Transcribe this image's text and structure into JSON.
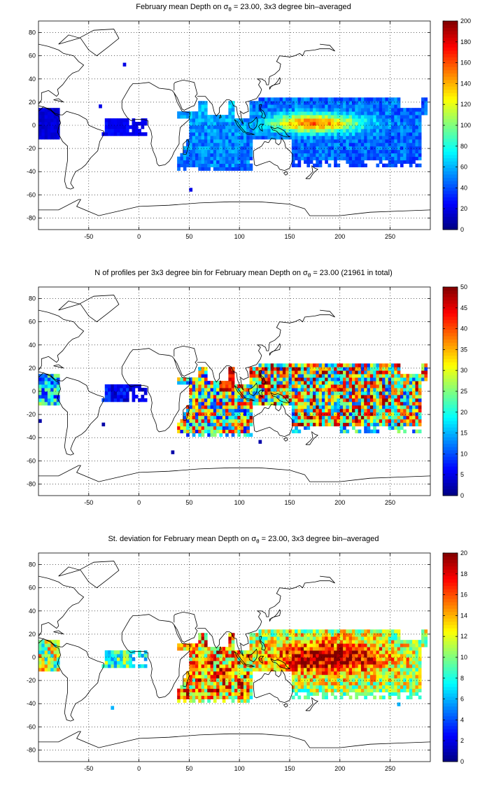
{
  "chart_data": [
    {
      "type": "heatmap",
      "title_prefix": "February mean Depth on ",
      "title_symbol": "σ",
      "title_subscript": "θ",
      "title_suffix": " = 23.00, 3x3 degree bin–averaged",
      "xlim": [
        -100,
        290
      ],
      "ylim": [
        -90,
        90
      ],
      "xticks": [
        -50,
        0,
        50,
        100,
        150,
        200,
        250
      ],
      "yticks": [
        -80,
        -60,
        -40,
        -20,
        0,
        20,
        40,
        60,
        80
      ],
      "grid": true,
      "colormap": "jet",
      "colorbar_range": [
        0,
        200
      ],
      "colorbar_ticks": [
        0,
        20,
        40,
        60,
        80,
        100,
        120,
        140,
        160,
        180,
        200
      ],
      "regions": [
        {
          "area": "Eastern/Central Pacific (east of date line)",
          "lon": [
            -100,
            -30
          ],
          "lat": [
            -12,
            18
          ],
          "approx_value": 15
        },
        {
          "area": "Tropical Atlantic",
          "lon": [
            -40,
            10
          ],
          "lat": [
            -6,
            6
          ],
          "approx_value": 20
        },
        {
          "area": "Indian Ocean / Western Pacific warm pool",
          "lon": [
            45,
            290
          ],
          "lat": [
            -40,
            25
          ],
          "approx_value": 70
        },
        {
          "area": "Central Pacific maximum",
          "lon": [
            150,
            220
          ],
          "lat": [
            -5,
            10
          ],
          "approx_value": 160
        }
      ]
    },
    {
      "type": "heatmap",
      "title_prefix": "N of profiles per 3x3 degree bin for February mean Depth on ",
      "title_symbol": "σ",
      "title_subscript": "θ",
      "title_suffix": " = 23.00 (21961 in total)",
      "xlim": [
        -100,
        290
      ],
      "ylim": [
        -90,
        90
      ],
      "xticks": [
        -50,
        0,
        50,
        100,
        150,
        200,
        250
      ],
      "yticks": [
        -80,
        -60,
        -40,
        -20,
        0,
        20,
        40,
        60,
        80
      ],
      "grid": true,
      "colormap": "jet",
      "colorbar_range": [
        0,
        50
      ],
      "colorbar_ticks": [
        0,
        5,
        10,
        15,
        20,
        25,
        30,
        35,
        40,
        45,
        50
      ],
      "total_profiles": 21961,
      "regions": [
        {
          "area": "Eastern Pacific",
          "lon": [
            -100,
            -80
          ],
          "lat": [
            -10,
            15
          ],
          "approx_value": 15
        },
        {
          "area": "Tropical Atlantic",
          "lon": [
            -40,
            10
          ],
          "lat": [
            -10,
            6
          ],
          "approx_value": 5
        },
        {
          "area": "Indian Ocean",
          "lon": [
            40,
            120
          ],
          "lat": [
            -40,
            25
          ],
          "approx_value": 25
        },
        {
          "area": "Arabian Sea / Bay of Bengal",
          "lon": [
            80,
            95
          ],
          "lat": [
            0,
            22
          ],
          "approx_value": 50
        },
        {
          "area": "Western/Central Pacific",
          "lon": [
            110,
            290
          ],
          "lat": [
            -35,
            22
          ],
          "approx_value": 30
        }
      ]
    },
    {
      "type": "heatmap",
      "title_prefix": "St. deviation for February mean Depth on ",
      "title_symbol": "σ",
      "title_subscript": "θ",
      "title_suffix": " = 23.00, 3x3 degree bin–averaged",
      "xlim": [
        -100,
        290
      ],
      "ylim": [
        -90,
        90
      ],
      "xticks": [
        -50,
        0,
        50,
        100,
        150,
        200,
        250
      ],
      "yticks": [
        -80,
        -60,
        -40,
        -20,
        0,
        20,
        40,
        60,
        80
      ],
      "grid": true,
      "colormap": "jet",
      "colorbar_range": [
        0,
        20
      ],
      "colorbar_ticks": [
        0,
        2,
        4,
        6,
        8,
        10,
        12,
        14,
        16,
        18,
        20
      ],
      "regions": [
        {
          "area": "Eastern Pacific",
          "lon": [
            -100,
            -80
          ],
          "lat": [
            -10,
            18
          ],
          "approx_value": 9
        },
        {
          "area": "Tropical Atlantic",
          "lon": [
            -40,
            10
          ],
          "lat": [
            -10,
            6
          ],
          "approx_value": 8
        },
        {
          "area": "Indian Ocean",
          "lon": [
            40,
            120
          ],
          "lat": [
            -40,
            25
          ],
          "approx_value": 15
        },
        {
          "area": "Western/Central Pacific",
          "lon": [
            110,
            290
          ],
          "lat": [
            -35,
            22
          ],
          "approx_value": 19
        }
      ]
    }
  ]
}
